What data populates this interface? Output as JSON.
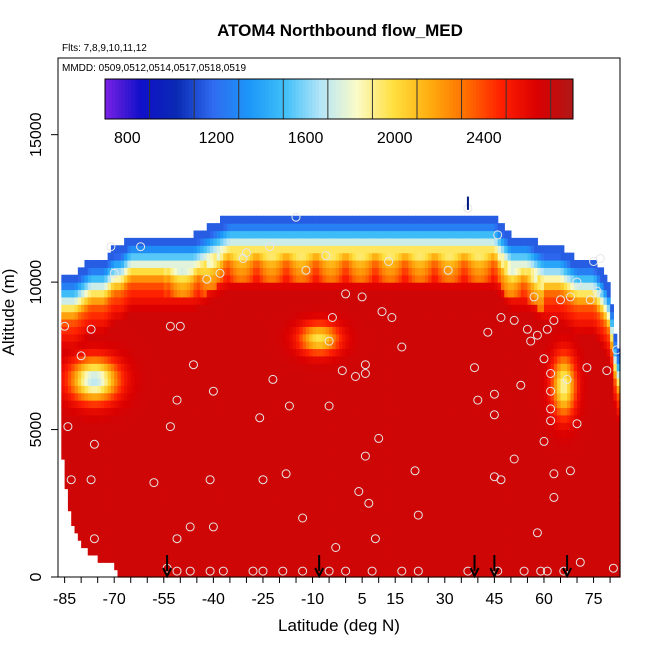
{
  "chart_data": {
    "type": "heatmap",
    "title": "ATOM4 Northbound flow_MED",
    "subtitle_flights": "Flts: 7,8,9,10,11,12",
    "subtitle_dates": "MMDD: 0509,0512,0514,0517,0518,0519",
    "xlabel": "Latitude (deg N)",
    "ylabel": "Altitude (m)",
    "xlim": [
      -87,
      83
    ],
    "ylim": [
      0,
      17600
    ],
    "x_ticks": [
      -85,
      -70,
      -55,
      -40,
      -25,
      -10,
      5,
      15,
      30,
      45,
      60,
      75
    ],
    "x_tick_labels": [
      "-85",
      "-70",
      "-55",
      "-40",
      "-25",
      "-10",
      "5",
      "15",
      "30",
      "45",
      "60",
      "75"
    ],
    "y_ticks": [
      0,
      5000,
      10000,
      15000
    ],
    "y_tick_labels": [
      "0",
      "5000",
      "10000",
      "15000"
    ],
    "colorbar": {
      "min": 700,
      "max": 2800,
      "step": 200,
      "tick_values": [
        800,
        1200,
        1600,
        2000,
        2400
      ],
      "tick_labels": [
        "800",
        "1200",
        "1600",
        "2000",
        "2400"
      ],
      "colors": [
        "#7b22e4",
        "#1010c8",
        "#0a2ab4",
        "#2f6bf0",
        "#1c96f8",
        "#40c0f8",
        "#b5e5f8",
        "#fbfbc8",
        "#ffe040",
        "#ffae10",
        "#ff7000",
        "#ff2000",
        "#da0000",
        "#b01818"
      ]
    },
    "flight_markers_lat": [
      -54,
      -8,
      39,
      45,
      67
    ],
    "data_top_altitude_profile": {
      "lat": [
        -86,
        -82,
        -77,
        -73,
        -70,
        -68,
        -65,
        -60,
        -55,
        -50,
        -46,
        -35,
        -30,
        -25,
        -20,
        -15,
        -10,
        -5,
        0,
        5,
        10,
        15,
        20,
        25,
        30,
        35,
        40,
        45,
        50,
        55,
        60,
        65,
        70,
        75,
        78,
        80,
        82
      ],
      "alt": [
        10300,
        10300,
        10800,
        10800,
        11200,
        11200,
        11600,
        11600,
        11600,
        11600,
        11600,
        12300,
        12300,
        12300,
        12300,
        12300,
        12300,
        12300,
        12300,
        12300,
        12300,
        12300,
        12300,
        12300,
        12300,
        12300,
        12300,
        12300,
        11600,
        11600,
        11200,
        11200,
        10800,
        10800,
        10300,
        9800,
        7800
      ]
    },
    "surface_altitude_profile": {
      "lat": [
        -86,
        -85,
        -84,
        -83,
        -82,
        -80,
        -78,
        -76,
        -74,
        -72,
        -70,
        -69,
        -60,
        -55,
        -50,
        -45,
        -40,
        -30,
        -20,
        -10,
        0,
        10,
        20,
        30,
        40,
        50,
        60,
        70,
        75,
        78,
        80,
        82
      ],
      "alt": [
        4600,
        3300,
        2600,
        2100,
        1600,
        1100,
        900,
        700,
        600,
        500,
        400,
        0,
        0,
        0,
        0,
        0,
        0,
        0,
        0,
        0,
        0,
        0,
        0,
        0,
        0,
        0,
        0,
        0,
        0,
        0,
        0,
        0
      ]
    },
    "field_description": "Median northbound flow values (~700-2800) gridded by latitude and altitude; highest (dark red ~2600-2800) below ~9000 m, transitioning through orange/yellow to light blue/blue near the upper boundary (~11000-12500 m). A cooler pocket (light blue ~1600-2000) at lat -85 to -68, 6000-7500 m; cool tongue near lat 60-70 around 6500 m; cooler pocket near lat -10 to 0 around 8000 m.",
    "observations": [
      {
        "lat": -85,
        "alt": 8500
      },
      {
        "lat": -84,
        "alt": 5100
      },
      {
        "lat": -83,
        "alt": 3300
      },
      {
        "lat": -80,
        "alt": 7500
      },
      {
        "lat": -77,
        "alt": 8400
      },
      {
        "lat": -76,
        "alt": 4500
      },
      {
        "lat": -77,
        "alt": 3300
      },
      {
        "lat": -76,
        "alt": 1300
      },
      {
        "lat": -71,
        "alt": 11200
      },
      {
        "lat": -70,
        "alt": 10300
      },
      {
        "lat": -62,
        "alt": 11200
      },
      {
        "lat": -58,
        "alt": 3200
      },
      {
        "lat": -54,
        "alt": 300
      },
      {
        "lat": -53,
        "alt": 8500
      },
      {
        "lat": -53,
        "alt": 5100
      },
      {
        "lat": -51,
        "alt": 6000
      },
      {
        "lat": -51,
        "alt": 1300
      },
      {
        "lat": -51,
        "alt": 200
      },
      {
        "lat": -50,
        "alt": 8500
      },
      {
        "lat": -47,
        "alt": 1700
      },
      {
        "lat": -47,
        "alt": 200
      },
      {
        "lat": -46,
        "alt": 7200
      },
      {
        "lat": -42,
        "alt": 10100
      },
      {
        "lat": -41,
        "alt": 3300
      },
      {
        "lat": -41,
        "alt": 200
      },
      {
        "lat": -40,
        "alt": 6300
      },
      {
        "lat": -40,
        "alt": 1700
      },
      {
        "lat": -38,
        "alt": 10300
      },
      {
        "lat": -37,
        "alt": 200
      },
      {
        "lat": -31,
        "alt": 10800
      },
      {
        "lat": -30,
        "alt": 11000
      },
      {
        "lat": -28,
        "alt": 200
      },
      {
        "lat": -26,
        "alt": 5400
      },
      {
        "lat": -25,
        "alt": 3300
      },
      {
        "lat": -25,
        "alt": 200
      },
      {
        "lat": -23,
        "alt": 11200
      },
      {
        "lat": -22,
        "alt": 6700
      },
      {
        "lat": -19,
        "alt": 200
      },
      {
        "lat": -18,
        "alt": 3500
      },
      {
        "lat": -17,
        "alt": 5800
      },
      {
        "lat": -15,
        "alt": 12200
      },
      {
        "lat": -13,
        "alt": 2000
      },
      {
        "lat": -13,
        "alt": 200
      },
      {
        "lat": -12,
        "alt": 10400
      },
      {
        "lat": -6,
        "alt": 10900
      },
      {
        "lat": -5,
        "alt": 5800
      },
      {
        "lat": -5,
        "alt": 8000
      },
      {
        "lat": -5,
        "alt": 200
      },
      {
        "lat": -4,
        "alt": 8800
      },
      {
        "lat": -3,
        "alt": 1000
      },
      {
        "lat": -1,
        "alt": 7000
      },
      {
        "lat": 0,
        "alt": 9600
      },
      {
        "lat": 0,
        "alt": 200
      },
      {
        "lat": 3,
        "alt": 6800
      },
      {
        "lat": 4,
        "alt": 2900
      },
      {
        "lat": 5,
        "alt": 9500
      },
      {
        "lat": 6,
        "alt": 6900
      },
      {
        "lat": 6,
        "alt": 7200
      },
      {
        "lat": 6,
        "alt": 4100
      },
      {
        "lat": 7,
        "alt": 2500
      },
      {
        "lat": 8,
        "alt": 200
      },
      {
        "lat": 9,
        "alt": 1300
      },
      {
        "lat": 10,
        "alt": 4700
      },
      {
        "lat": 11,
        "alt": 9000
      },
      {
        "lat": 13,
        "alt": 10700
      },
      {
        "lat": 14,
        "alt": 8800
      },
      {
        "lat": 17,
        "alt": 200
      },
      {
        "lat": 17,
        "alt": 7800
      },
      {
        "lat": 21,
        "alt": 3600
      },
      {
        "lat": 22,
        "alt": 2100
      },
      {
        "lat": 22,
        "alt": 200
      },
      {
        "lat": 31,
        "alt": 10400
      },
      {
        "lat": 37,
        "alt": 12500
      },
      {
        "lat": 37,
        "alt": 200
      },
      {
        "lat": 39,
        "alt": 7100
      },
      {
        "lat": 40,
        "alt": 6000
      },
      {
        "lat": 43,
        "alt": 8300
      },
      {
        "lat": 45,
        "alt": 6200
      },
      {
        "lat": 45,
        "alt": 5500
      },
      {
        "lat": 45,
        "alt": 3400
      },
      {
        "lat": 46,
        "alt": 11600
      },
      {
        "lat": 46,
        "alt": 200
      },
      {
        "lat": 47,
        "alt": 8800
      },
      {
        "lat": 47,
        "alt": 3300
      },
      {
        "lat": 51,
        "alt": 4000
      },
      {
        "lat": 51,
        "alt": 8700
      },
      {
        "lat": 53,
        "alt": 6500
      },
      {
        "lat": 54,
        "alt": 200
      },
      {
        "lat": 55,
        "alt": 8400
      },
      {
        "lat": 56,
        "alt": 8000
      },
      {
        "lat": 57,
        "alt": 9500
      },
      {
        "lat": 58,
        "alt": 8200
      },
      {
        "lat": 58,
        "alt": 1500
      },
      {
        "lat": 59,
        "alt": 200
      },
      {
        "lat": 60,
        "alt": 7400
      },
      {
        "lat": 60,
        "alt": 4600
      },
      {
        "lat": 61,
        "alt": 8400
      },
      {
        "lat": 61,
        "alt": 200
      },
      {
        "lat": 62,
        "alt": 5700
      },
      {
        "lat": 62,
        "alt": 5300
      },
      {
        "lat": 62,
        "alt": 6300
      },
      {
        "lat": 62,
        "alt": 6900
      },
      {
        "lat": 63,
        "alt": 8700
      },
      {
        "lat": 63,
        "alt": 3500
      },
      {
        "lat": 63,
        "alt": 2700
      },
      {
        "lat": 65,
        "alt": 9400
      },
      {
        "lat": 66,
        "alt": 200
      },
      {
        "lat": 67,
        "alt": 6700
      },
      {
        "lat": 68,
        "alt": 3600
      },
      {
        "lat": 68,
        "alt": 9500
      },
      {
        "lat": 70,
        "alt": 10000
      },
      {
        "lat": 70,
        "alt": 5200
      },
      {
        "lat": 71,
        "alt": 500
      },
      {
        "lat": 73,
        "alt": 7100
      },
      {
        "lat": 74,
        "alt": 9400
      },
      {
        "lat": 75,
        "alt": 10700
      },
      {
        "lat": 76,
        "alt": 9700
      },
      {
        "lat": 77,
        "alt": 10800
      },
      {
        "lat": 79,
        "alt": 7000
      },
      {
        "lat": 81,
        "alt": 300
      },
      {
        "lat": 82,
        "alt": 7700
      }
    ]
  }
}
